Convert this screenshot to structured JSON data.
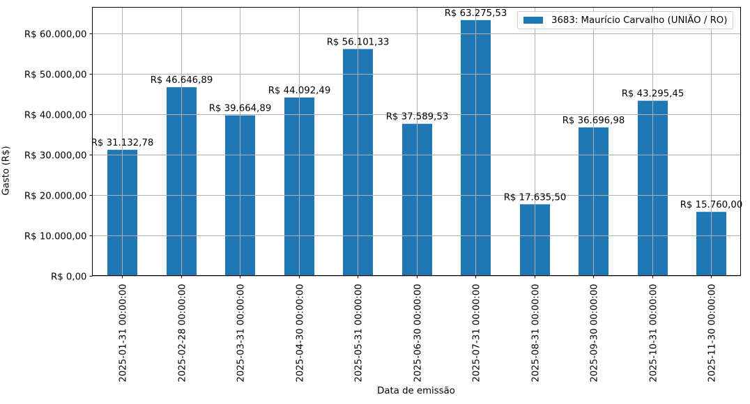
{
  "chart_data": {
    "type": "bar",
    "title": "",
    "xlabel": "Data de emissão",
    "ylabel": "Gasto (R$)",
    "categories": [
      "2025-01-31 00:00:00",
      "2025-02-28 00:00:00",
      "2025-03-31 00:00:00",
      "2025-04-30 00:00:00",
      "2025-05-31 00:00:00",
      "2025-06-30 00:00:00",
      "2025-07-31 00:00:00",
      "2025-08-31 00:00:00",
      "2025-09-30 00:00:00",
      "2025-10-31 00:00:00",
      "2025-11-30 00:00:00"
    ],
    "series": [
      {
        "name": "3683: Maurício Carvalho (UNIÃO / RO)",
        "color": "#1f77b4",
        "values": [
          31132.78,
          46646.89,
          39664.89,
          44092.49,
          56101.33,
          37589.53,
          63275.53,
          17635.5,
          36696.98,
          43295.45,
          15760.0
        ],
        "labels": [
          "R$ 31.132,78",
          "R$ 46.646,89",
          "R$ 39.664,89",
          "R$ 44.092,49",
          "R$ 56.101,33",
          "R$ 37.589,53",
          "R$ 63.275,53",
          "R$ 17.635,50",
          "R$ 36.696,98",
          "R$ 43.295,45",
          "R$ 15.760,00"
        ]
      }
    ],
    "yticks": [
      0,
      10000,
      20000,
      30000,
      40000,
      50000,
      60000
    ],
    "ytick_labels": [
      "R$ 0,00",
      "R$ 10.000,00",
      "R$ 20.000,00",
      "R$ 30.000,00",
      "R$ 40.000,00",
      "R$ 50.000,00",
      "R$ 60.000,00"
    ],
    "ylim": [
      0,
      66440
    ],
    "grid": true,
    "legend_position": "upper right"
  },
  "legend": {
    "label": "3683: Maurício Carvalho (UNIÃO / RO)",
    "color": "#1f77b4"
  },
  "axes": {
    "xlabel": "Data de emissão",
    "ylabel": "Gasto (R$)"
  }
}
